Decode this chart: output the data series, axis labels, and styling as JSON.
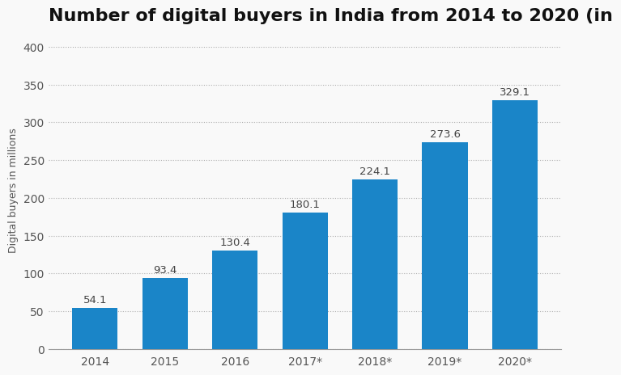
{
  "title": "Number of digital buyers in India from 2014 to 2020 (in",
  "categories": [
    "2014",
    "2015",
    "2016",
    "2017*",
    "2018*",
    "2019*",
    "2020*"
  ],
  "values": [
    54.1,
    93.4,
    130.4,
    180.1,
    224.1,
    273.6,
    329.1
  ],
  "bar_color": "#1a85c8",
  "ylabel": "Digital buyers in millions",
  "ylim": [
    0,
    420
  ],
  "yticks": [
    0,
    50,
    100,
    150,
    200,
    250,
    300,
    350,
    400
  ],
  "background_color": "#f9f9f9",
  "grid_color": "#b0b0b0",
  "title_fontsize": 16,
  "label_fontsize": 9,
  "tick_fontsize": 10,
  "value_label_fontsize": 9.5,
  "bar_width": 0.65
}
